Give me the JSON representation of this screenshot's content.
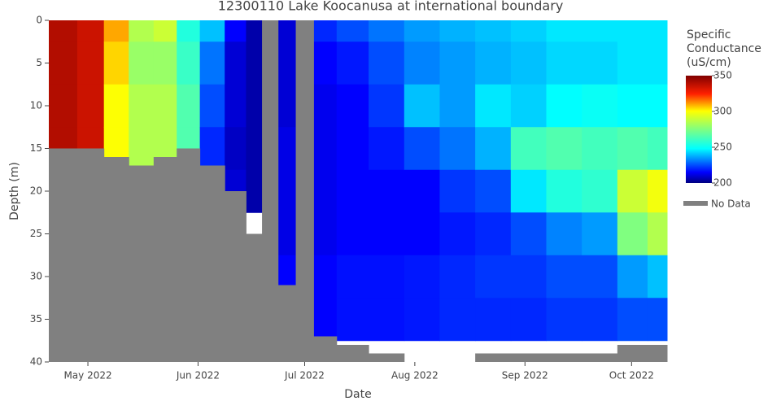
{
  "chart_data": {
    "type": "heatmap",
    "title": "12300110 Lake Koocanusa at international boundary",
    "x_label": "Date",
    "y_label": "Depth (m)",
    "x": [
      "2022-04-24",
      "2022-05-02",
      "2022-05-09",
      "2022-05-16",
      "2022-05-23",
      "2022-05-29",
      "2022-06-05",
      "2022-06-12",
      "2022-06-17",
      "2022-06-21",
      "2022-06-26",
      "2022-07-01",
      "2022-07-06",
      "2022-07-14",
      "2022-07-24",
      "2022-08-03",
      "2022-08-13",
      "2022-08-23",
      "2022-09-02",
      "2022-09-12",
      "2022-09-22",
      "2022-10-02",
      "2022-10-09"
    ],
    "y": [
      0,
      5,
      10,
      15,
      20,
      25,
      30,
      35,
      40
    ],
    "z": [
      [
        340,
        340,
        340,
        340,
        null,
        null,
        null,
        null,
        null
      ],
      [
        335,
        335,
        335,
        335,
        null,
        null,
        null,
        null,
        null
      ],
      [
        310,
        305,
        300,
        300,
        null,
        null,
        null,
        null,
        null
      ],
      [
        285,
        280,
        285,
        285,
        null,
        null,
        null,
        null,
        null
      ],
      [
        290,
        280,
        285,
        285,
        null,
        null,
        null,
        null,
        null
      ],
      [
        255,
        260,
        265,
        265,
        null,
        null,
        null,
        null,
        null
      ],
      [
        240,
        230,
        225,
        220,
        null,
        null,
        null,
        null,
        null
      ],
      [
        215,
        210,
        210,
        208,
        210,
        null,
        null,
        null,
        null
      ],
      [
        205,
        205,
        205,
        205,
        205,
        null,
        null,
        null,
        null
      ],
      [
        null,
        null,
        null,
        null,
        null,
        null,
        null,
        null,
        null
      ],
      [
        210,
        210,
        210,
        212,
        212,
        212,
        215,
        null,
        null
      ],
      [
        null,
        null,
        null,
        null,
        null,
        null,
        null,
        null,
        null
      ],
      [
        220,
        215,
        213,
        213,
        213,
        213,
        215,
        215,
        null
      ],
      [
        225,
        218,
        215,
        215,
        215,
        215,
        217,
        217,
        null
      ],
      [
        230,
        225,
        222,
        218,
        215,
        215,
        217,
        217,
        null
      ],
      [
        235,
        232,
        240,
        225,
        215,
        215,
        218,
        218,
        null
      ],
      [
        238,
        235,
        235,
        230,
        222,
        218,
        220,
        220,
        null
      ],
      [
        240,
        238,
        245,
        238,
        225,
        220,
        222,
        220,
        null
      ],
      [
        242,
        240,
        242,
        262,
        245,
        225,
        222,
        220,
        null
      ],
      [
        245,
        243,
        248,
        265,
        255,
        232,
        225,
        222,
        null
      ],
      [
        245,
        243,
        250,
        262,
        258,
        235,
        225,
        222,
        null
      ],
      [
        245,
        245,
        248,
        265,
        290,
        275,
        235,
        225,
        null
      ],
      [
        245,
        245,
        248,
        262,
        298,
        285,
        240,
        225,
        null
      ]
    ],
    "nodata": {
      "name": "No Data",
      "color": "#808080",
      "values": [
        15,
        15,
        16,
        17,
        16,
        15,
        17,
        20,
        25,
        0,
        31,
        0,
        37,
        38,
        39,
        40,
        40,
        39,
        39,
        39,
        39,
        38,
        38
      ]
    },
    "xlim": [
      "2022-04-20",
      "2022-10-11"
    ],
    "xticks": [
      {
        "value": "2022-05-01",
        "label": "May 2022"
      },
      {
        "value": "2022-06-01",
        "label": "Jun 2022"
      },
      {
        "value": "2022-07-01",
        "label": "Jul 2022"
      },
      {
        "value": "2022-08-01",
        "label": "Aug 2022"
      },
      {
        "value": "2022-09-01",
        "label": "Sep 2022"
      },
      {
        "value": "2022-10-01",
        "label": "Oct 2022"
      }
    ],
    "ylim": [
      40,
      0
    ],
    "yticks": [
      0,
      5,
      10,
      15,
      20,
      25,
      30,
      35,
      40
    ],
    "colorbar": {
      "title": [
        "Specific",
        "Conductance",
        "(uS/cm)"
      ],
      "lim": [
        200,
        350
      ],
      "ticks": [
        200,
        250,
        300,
        350
      ],
      "colorscale": [
        [
          0,
          "#000080"
        ],
        [
          0.1,
          "#0000ff"
        ],
        [
          0.32,
          "#00ffff"
        ],
        [
          0.5,
          "#80ff80"
        ],
        [
          0.67,
          "#ffff00"
        ],
        [
          0.83,
          "#ff2000"
        ],
        [
          1,
          "#800000"
        ]
      ]
    }
  }
}
